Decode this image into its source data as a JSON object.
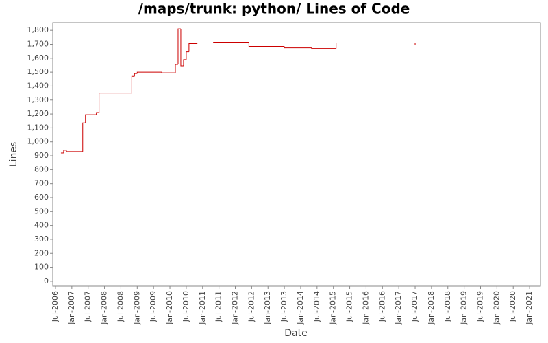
{
  "chart_data": {
    "type": "step",
    "title": "/maps/trunk: python/ Lines of Code",
    "x_label": "Date",
    "y_label": "Lines",
    "x": [
      "2006-09",
      "2006-10",
      "2006-11",
      "2007-05",
      "2007-06",
      "2007-10",
      "2007-11",
      "2008-11",
      "2008-12",
      "2009-01",
      "2009-10",
      "2010-03",
      "2010-04",
      "2010-05",
      "2010-06",
      "2010-07",
      "2010-08",
      "2010-11",
      "2011-05",
      "2012-06",
      "2013-07",
      "2014-05",
      "2015-02",
      "2017-07",
      "2021-01"
    ],
    "series": [
      {
        "name": "Lines",
        "color": "#cc0000",
        "values": [
          920,
          940,
          930,
          1135,
          1195,
          1210,
          1350,
          1470,
          1490,
          1500,
          1495,
          1555,
          1810,
          1545,
          1590,
          1645,
          1705,
          1710,
          1715,
          1685,
          1675,
          1670,
          1710,
          1695,
          1695
        ]
      }
    ],
    "xlim": [
      "2006-06",
      "2021-05"
    ],
    "xticks": [
      {
        "value": "2006-07",
        "label": "Jul-2006"
      },
      {
        "value": "2007-01",
        "label": "Jan-2007"
      },
      {
        "value": "2007-07",
        "label": "Jul-2007"
      },
      {
        "value": "2008-01",
        "label": "Jan-2008"
      },
      {
        "value": "2008-07",
        "label": "Jul-2008"
      },
      {
        "value": "2009-01",
        "label": "Jan-2009"
      },
      {
        "value": "2009-07",
        "label": "Jul-2009"
      },
      {
        "value": "2010-01",
        "label": "Jan-2010"
      },
      {
        "value": "2010-07",
        "label": "Jul-2010"
      },
      {
        "value": "2011-01",
        "label": "Jan-2011"
      },
      {
        "value": "2011-07",
        "label": "Jul-2011"
      },
      {
        "value": "2012-01",
        "label": "Jan-2012"
      },
      {
        "value": "2012-07",
        "label": "Jul-2012"
      },
      {
        "value": "2013-01",
        "label": "Jan-2013"
      },
      {
        "value": "2013-07",
        "label": "Jul-2013"
      },
      {
        "value": "2014-01",
        "label": "Jan-2014"
      },
      {
        "value": "2014-07",
        "label": "Jul-2014"
      },
      {
        "value": "2015-01",
        "label": "Jan-2015"
      },
      {
        "value": "2015-07",
        "label": "Jul-2015"
      },
      {
        "value": "2016-01",
        "label": "Jan-2016"
      },
      {
        "value": "2016-07",
        "label": "Jul-2016"
      },
      {
        "value": "2017-01",
        "label": "Jan-2017"
      },
      {
        "value": "2017-07",
        "label": "Jul-2017"
      },
      {
        "value": "2018-01",
        "label": "Jan-2018"
      },
      {
        "value": "2018-07",
        "label": "Jul-2018"
      },
      {
        "value": "2019-01",
        "label": "Jan-2019"
      },
      {
        "value": "2019-07",
        "label": "Jul-2019"
      },
      {
        "value": "2020-01",
        "label": "Jan-2020"
      },
      {
        "value": "2020-07",
        "label": "Jul-2020"
      },
      {
        "value": "2021-01",
        "label": "Jan-2021"
      }
    ],
    "ylim": [
      -35,
      1855
    ],
    "yticks": [
      0,
      100,
      200,
      300,
      400,
      500,
      600,
      700,
      800,
      900,
      {
        "value": 1000,
        "label": "1,000"
      },
      {
        "value": 1100,
        "label": "1,100"
      },
      {
        "value": 1200,
        "label": "1,200"
      },
      {
        "value": 1300,
        "label": "1,300"
      },
      {
        "value": 1400,
        "label": "1,400"
      },
      {
        "value": 1500,
        "label": "1,500"
      },
      {
        "value": 1600,
        "label": "1,600"
      },
      {
        "value": 1700,
        "label": "1,700"
      },
      {
        "value": 1800,
        "label": "1,800"
      }
    ],
    "grid": false
  }
}
